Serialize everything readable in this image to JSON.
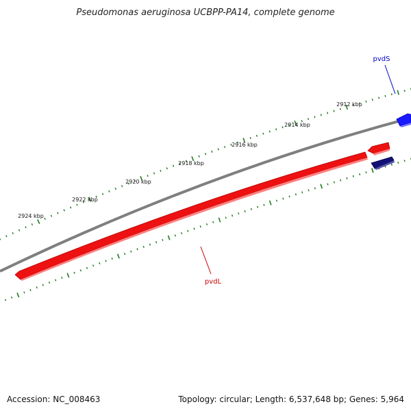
{
  "title": "Pseudomonas aeruginosa UCBPP-PA14, complete genome",
  "footer": {
    "accession": "Accession: NC_008463",
    "summary": "Topology: circular; Length: 6,537,648 bp; Genes: 5,964"
  },
  "scale": {
    "unit": "kbp",
    "labels": [
      "2912 kbp",
      "2914 kbp",
      "2916 kbp",
      "2918 kbp",
      "2920 kbp",
      "2922 kbp",
      "2924 kbp"
    ]
  },
  "genes": [
    {
      "name": "pvdS",
      "strand": "forward",
      "color": "#1a1aff",
      "label_color": "#0000cc"
    },
    {
      "name": "",
      "strand": "forward",
      "color": "#ee1111",
      "label_color": ""
    },
    {
      "name": "pvdL",
      "strand": "forward",
      "color": "#ee1111",
      "label_color": "#cc0000"
    },
    {
      "name": "",
      "strand": "reverse",
      "color": "#111177",
      "label_color": ""
    }
  ],
  "colors": {
    "backbone": "#7f7f7f",
    "ticks": "#1e7a1e"
  }
}
